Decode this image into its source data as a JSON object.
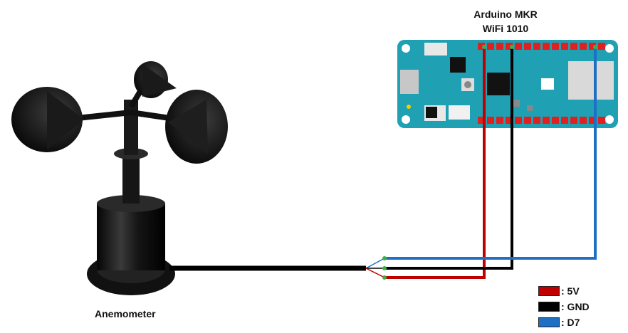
{
  "board": {
    "title_line1": "Arduino MKR",
    "title_line2": "WiFi 1010",
    "color": "#1fa0b3"
  },
  "sensor": {
    "label": "Anemometer",
    "color": "#111111"
  },
  "legend": [
    {
      "label": ": 5V",
      "color": "#c00000"
    },
    {
      "label": ": GND",
      "color": "#000000"
    },
    {
      "label": ": D7",
      "color": "#1f6fc4"
    }
  ]
}
